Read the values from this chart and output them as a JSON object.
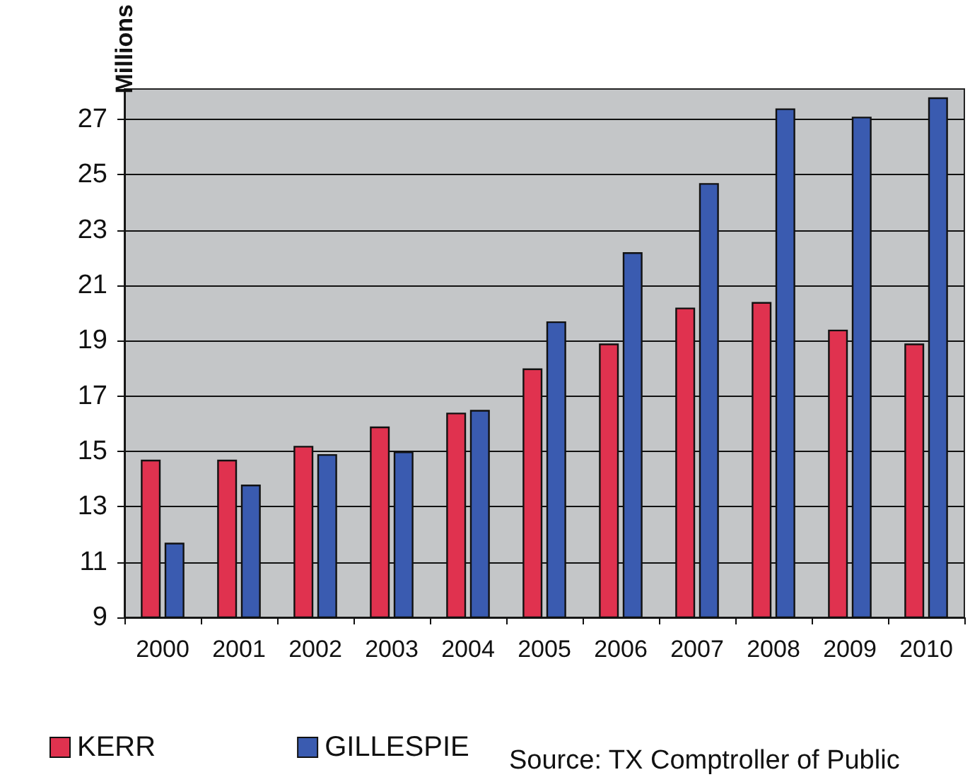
{
  "chart_data": {
    "type": "bar",
    "ylabel": "Millions",
    "categories": [
      "2000",
      "2001",
      "2002",
      "2003",
      "2004",
      "2005",
      "2006",
      "2007",
      "2008",
      "2009",
      "2010"
    ],
    "series": [
      {
        "name": "KERR",
        "color": "#e0324f",
        "values": [
          14.7,
          14.7,
          15.2,
          15.9,
          16.4,
          18.0,
          18.9,
          20.2,
          20.4,
          19.4,
          18.9
        ]
      },
      {
        "name": "GILLESPIE",
        "color": "#3a5bb0",
        "values": [
          11.7,
          13.8,
          14.9,
          15.0,
          16.5,
          19.7,
          22.2,
          24.7,
          27.4,
          27.1,
          27.8
        ]
      }
    ],
    "ylim": [
      9,
      28.1
    ],
    "yticks": [
      9,
      11,
      13,
      15,
      17,
      19,
      21,
      23,
      25,
      27
    ],
    "grid": "y",
    "legend": "bottom left",
    "annotations": [
      "Source: TX Comptroller of Public"
    ]
  }
}
